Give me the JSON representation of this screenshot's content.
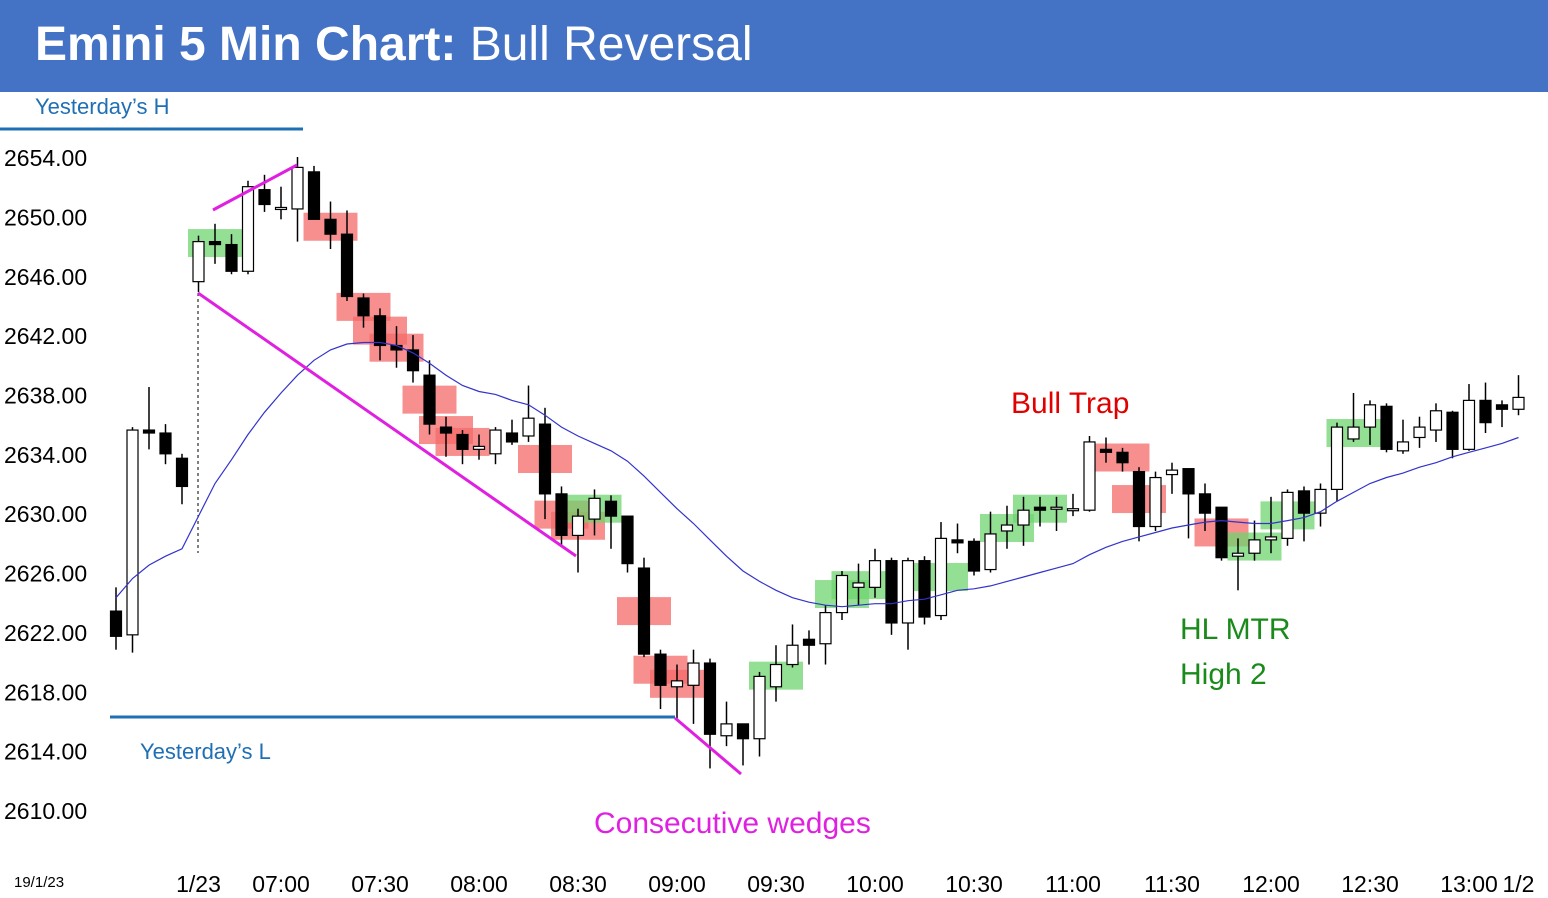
{
  "chart_data": {
    "type": "candlestick",
    "title_bold": "Emini 5 Min Chart:",
    "title": "Bull Reversal",
    "date_label": "19/1/23",
    "annotations": [
      "Yesterday’s H",
      "Yesterday’s L",
      "Bull Trap",
      "HL MTR",
      "High 2",
      "Consecutive wedges"
    ],
    "categories": [
      null,
      null,
      null,
      null,
      null,
      "1/23",
      null,
      null,
      null,
      null,
      "07:00",
      null,
      null,
      null,
      null,
      null,
      "07:30",
      null,
      null,
      null,
      null,
      null,
      "08:00",
      null,
      null,
      null,
      null,
      null,
      "08:30",
      null,
      null,
      null,
      null,
      null,
      "09:00",
      null,
      null,
      null,
      null,
      null,
      "09:30",
      null,
      null,
      null,
      null,
      null,
      "10:00",
      null,
      null,
      null,
      null,
      null,
      "10:30",
      null,
      null,
      null,
      null,
      null,
      "11:00",
      null,
      null,
      null,
      null,
      null,
      "11:30",
      null,
      null,
      null,
      null,
      null,
      "12:00",
      null,
      null,
      null,
      null,
      null,
      "12:30",
      null,
      null,
      null,
      null,
      null,
      "13:00",
      null,
      null,
      "1/2"
    ],
    "open": [
      2623.6,
      2622,
      2635.8,
      2635.6,
      2633.9,
      2645.8,
      2648.5,
      2648.3,
      2646.5,
      2652,
      2650.8,
      2650.7,
      2653.2,
      2650,
      2649,
      2644.7,
      2643.5,
      2641.5,
      2641.2,
      2639.5,
      2636,
      2635.5,
      2634.5,
      2634.2,
      2635.6,
      2635.4,
      2636.2,
      2631.5,
      2628.7,
      2629.8,
      2631,
      2630,
      2626.5,
      2620.7,
      2618.5,
      2618.6,
      2620.1,
      2615.2,
      2616,
      2615,
      2618.5,
      2620,
      2621.7,
      2621.4,
      2623.5,
      2625.2,
      2625.2,
      2627,
      2622.8,
      2627,
      2623.3,
      2628.4,
      2628.3,
      2626.4,
      2629,
      2629.4,
      2630.6,
      2630.6,
      2630.5,
      2630.4,
      2634.5,
      2634.3,
      2633,
      2629.3,
      2632.8,
      2633.2,
      2631.5,
      2630.6,
      2627.3,
      2627.5,
      2628.4,
      2628.5,
      2631.7,
      2630.2,
      2631.8,
      2635.2,
      2636,
      2637.4,
      2634.4,
      2635.3,
      2635.8,
      2637,
      2634.5,
      2637.8,
      2637.5,
      2637.2
    ],
    "high": [
      2625.2,
      2636,
      2638.7,
      2636.2,
      2634.2,
      2648.9,
      2649.7,
      2649,
      2652.6,
      2653,
      2652.2,
      2654.2,
      2653.6,
      2651.2,
      2650.6,
      2645,
      2644,
      2642.8,
      2642.2,
      2640.5,
      2636.7,
      2635.8,
      2635.5,
      2636,
      2636.5,
      2638.8,
      2637.3,
      2632,
      2630.5,
      2631.8,
      2631.4,
      2630,
      2627.2,
      2621,
      2620,
      2621,
      2620.4,
      2617.5,
      2616,
      2619.5,
      2621.3,
      2622.7,
      2622.3,
      2624,
      2626.3,
      2626.8,
      2627.8,
      2627.2,
      2627.2,
      2627.3,
      2629.6,
      2629.5,
      2628.5,
      2630.3,
      2630.7,
      2631.3,
      2631.3,
      2631.3,
      2631.5,
      2635.4,
      2635.3,
      2634.6,
      2633.3,
      2633,
      2633.6,
      2633.2,
      2632.2,
      2630.6,
      2628.5,
      2629.7,
      2631.3,
      2631.8,
      2632,
      2632.2,
      2636.3,
      2638.3,
      2637.8,
      2637.6,
      2636.5,
      2636.7,
      2637.6,
      2637.1,
      2638.9,
      2639,
      2637.8,
      2639.5
    ],
    "low": [
      2621,
      2620.8,
      2634.5,
      2633.5,
      2630.8,
      2645.1,
      2647,
      2646.3,
      2646.3,
      2650.5,
      2650,
      2648.5,
      2650,
      2648,
      2644.5,
      2642.7,
      2640.5,
      2640,
      2639,
      2635.5,
      2634,
      2633.5,
      2633.8,
      2633.5,
      2634.8,
      2635,
      2629.8,
      2628,
      2626.2,
      2628.7,
      2627.8,
      2626.2,
      2620.5,
      2617,
      2616.3,
      2616,
      2613,
      2614.5,
      2613.2,
      2613.8,
      2617.5,
      2619.8,
      2620,
      2620,
      2623,
      2624,
      2624.5,
      2622,
      2621,
      2622.7,
      2623,
      2627.5,
      2626,
      2626.2,
      2627.8,
      2628,
      2629.3,
      2629,
      2630,
      2630.3,
      2633.6,
      2633,
      2628.3,
      2629,
      2631.5,
      2628.5,
      2629,
      2627,
      2625,
      2627,
      2627.5,
      2628,
      2628.3,
      2629.3,
      2631,
      2635,
      2634.8,
      2634.3,
      2634.2,
      2634.6,
      2635,
      2633.9,
      2634.4,
      2635.6,
      2636,
      2636.8
    ],
    "close": [
      2621.9,
      2635.8,
      2635.6,
      2634.2,
      2632,
      2648.5,
      2648.3,
      2646.5,
      2652.2,
      2651,
      2650.8,
      2653.5,
      2650,
      2649,
      2644.8,
      2643.5,
      2641.5,
      2641.2,
      2639.8,
      2636.2,
      2635.6,
      2634.5,
      2634.7,
      2635.8,
      2635,
      2636.6,
      2631.5,
      2628.7,
      2630,
      2631.2,
      2630,
      2626.8,
      2620.7,
      2618.6,
      2618.9,
      2620.1,
      2615.3,
      2616,
      2615,
      2619.2,
      2620,
      2621.3,
      2621.3,
      2623.5,
      2626,
      2625.5,
      2627,
      2622.8,
      2627,
      2623.2,
      2628.5,
      2628.2,
      2626.3,
      2628.8,
      2629.4,
      2630.4,
      2630.4,
      2630.6,
      2630.5,
      2635,
      2634.3,
      2633.6,
      2629.3,
      2632.6,
      2633.1,
      2631.5,
      2630.2,
      2627.2,
      2627.5,
      2628.4,
      2628.6,
      2631.6,
      2630.2,
      2631.8,
      2636,
      2636,
      2637.5,
      2634.5,
      2635,
      2636,
      2637.1,
      2634.5,
      2637.8,
      2636.3,
      2637.2,
      2638
    ],
    "highlight_colors": [
      null,
      null,
      null,
      null,
      null,
      null,
      "#6fd46f",
      null,
      null,
      null,
      null,
      null,
      null,
      "#f46a6a",
      null,
      "#f46a6a",
      "#f46a6a",
      "#f46a6a",
      null,
      "#f46a6a",
      "#f46a6a",
      "#f46a6a",
      null,
      null,
      null,
      null,
      "#f46a6a",
      "#f46a6a",
      "#f46a6a",
      "#6fd46f",
      null,
      null,
      "#f46a6a",
      "#f46a6a",
      "#f46a6a",
      null,
      null,
      null,
      null,
      null,
      "#6fd46f",
      null,
      null,
      null,
      "#6fd46f",
      "#6fd46f",
      null,
      null,
      null,
      null,
      "#6fd46f",
      null,
      null,
      null,
      "#6fd46f",
      null,
      "#6fd46f",
      null,
      null,
      null,
      null,
      "#f46a6a",
      "#f46a6a",
      null,
      null,
      null,
      null,
      "#f46a6a",
      null,
      "#6fd46f",
      null,
      "#6fd46f",
      null,
      null,
      null,
      "#6fd46f",
      null,
      null,
      null,
      null,
      null,
      null,
      null,
      null,
      null,
      null
    ],
    "moving_average": {
      "color": "#3333cc",
      "values": [
        2624.5,
        2625.8,
        2626.7,
        2627.3,
        2627.8,
        2630,
        2632.2,
        2633.8,
        2635.5,
        2637,
        2638.3,
        2639.5,
        2640.5,
        2641.2,
        2641.6,
        2641.7,
        2641.7,
        2641.5,
        2641,
        2640.3,
        2639.5,
        2638.8,
        2638.4,
        2638.2,
        2637.8,
        2637.5,
        2636.8,
        2636,
        2635.4,
        2634.9,
        2634.4,
        2633.7,
        2632.7,
        2631.6,
        2630.5,
        2629.5,
        2628.4,
        2627.3,
        2626.3,
        2625.6,
        2625,
        2624.5,
        2624.2,
        2624,
        2623.9,
        2624,
        2624.1,
        2624.1,
        2624.3,
        2624.4,
        2624.7,
        2625,
        2625.1,
        2625.3,
        2625.6,
        2625.9,
        2626.2,
        2626.5,
        2626.8,
        2627.4,
        2627.9,
        2628.3,
        2628.6,
        2628.9,
        2629.2,
        2629.4,
        2629.6,
        2629.7,
        2629.6,
        2629.5,
        2629.5,
        2629.7,
        2629.9,
        2630.3,
        2631,
        2631.6,
        2632.2,
        2632.6,
        2632.9,
        2633.3,
        2633.6,
        2634,
        2634.3,
        2634.6,
        2634.9,
        2635.3
      ]
    },
    "ylim": [
      2608,
      2656
    ],
    "yticks": [
      {
        "value": 2610,
        "label": "2610.00"
      },
      {
        "value": 2614,
        "label": "2614.00"
      },
      {
        "value": 2618,
        "label": "2618.00"
      },
      {
        "value": 2622,
        "label": "2622.00"
      },
      {
        "value": 2626,
        "label": "2626.00"
      },
      {
        "value": 2630,
        "label": "2630.00"
      },
      {
        "value": 2634,
        "label": "2634.00"
      },
      {
        "value": 2638,
        "label": "2638.00"
      },
      {
        "value": 2642,
        "label": "2642.00"
      },
      {
        "value": 2646,
        "label": "2646.00"
      },
      {
        "value": 2650,
        "label": "2650.00"
      },
      {
        "value": 2654,
        "label": "2654.00"
      }
    ],
    "up_color": "#ffffff",
    "down_color": "#000000"
  }
}
